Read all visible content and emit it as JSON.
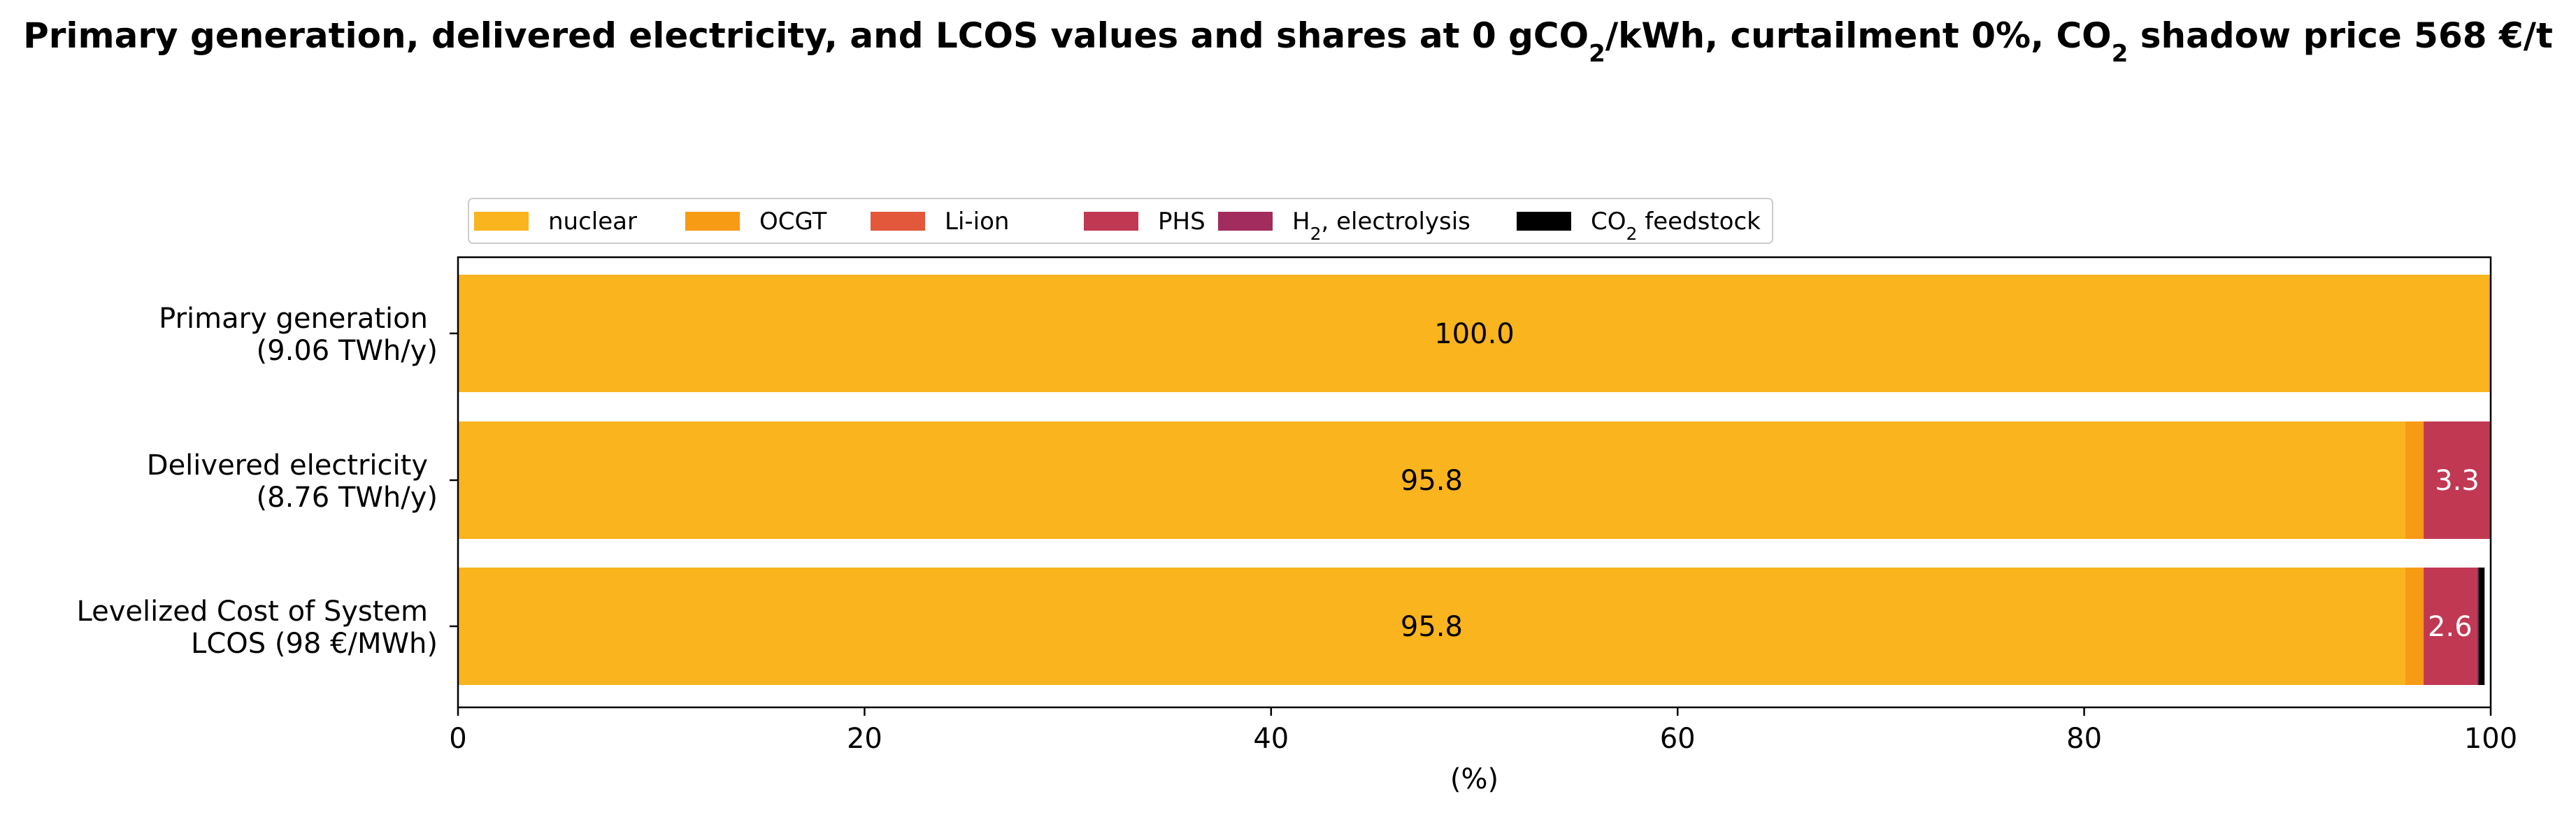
{
  "chart_data": {
    "type": "bar",
    "orientation": "horizontal",
    "stacked": true,
    "title": {
      "prefix": "Primary generation, delivered electricity, and LCOS values and shares at 0 gCO",
      "sub": "2",
      "middle": "/kWh, curtailment 0%, CO",
      "sub2": "2",
      "suffix": " shadow price 568 €/t"
    },
    "xlabel": "(%)",
    "ylabel": "",
    "xlim": [
      0,
      100
    ],
    "xticks": [
      "0",
      "20",
      "40",
      "60",
      "80",
      "100"
    ],
    "grid": false,
    "legend_position": "top-left",
    "categories": [
      {
        "line1": "Primary generation",
        "line2": "(9.06 TWh/y)"
      },
      {
        "line1": "Delivered electricity",
        "line2": "(8.76 TWh/y)"
      },
      {
        "line1": "Levelized Cost of System",
        "line2": "LCOS  (98 €/MWh)"
      }
    ],
    "series": [
      {
        "name": "nuclear",
        "sub": "",
        "name_after": "",
        "color": "#F9B41E",
        "values": [
          100.0,
          95.8,
          95.8
        ]
      },
      {
        "name": "OCGT",
        "sub": "",
        "name_after": "",
        "color": "#F79A14",
        "values": [
          0.0,
          0.9,
          0.9
        ]
      },
      {
        "name": "Li-ion",
        "sub": "",
        "name_after": "",
        "color": "#E3573B",
        "values": [
          0.0,
          0.0,
          0.0
        ]
      },
      {
        "name": "PHS",
        "sub": "",
        "name_after": "",
        "color": "#C13853",
        "values": [
          0.0,
          3.3,
          2.6
        ]
      },
      {
        "name": "H",
        "sub": "2",
        "name_after": ", electrolysis",
        "color": "#A22C5D",
        "values": [
          0.0,
          0.0,
          0.1
        ]
      },
      {
        "name": "CO",
        "sub": "2",
        "name_after": " feedstock",
        "color": "#000000",
        "values": [
          0.0,
          0.0,
          0.3
        ]
      }
    ],
    "data_labels": [
      {
        "bar": 0,
        "series": 0,
        "text": "100.0",
        "color": "#000000"
      },
      {
        "bar": 1,
        "series": 0,
        "text": "95.8",
        "color": "#000000"
      },
      {
        "bar": 1,
        "series": 3,
        "text": "3.3",
        "color": "#ffffff"
      },
      {
        "bar": 2,
        "series": 0,
        "text": "95.8",
        "color": "#000000"
      },
      {
        "bar": 2,
        "series": 3,
        "text": "2.6",
        "color": "#ffffff"
      }
    ]
  }
}
